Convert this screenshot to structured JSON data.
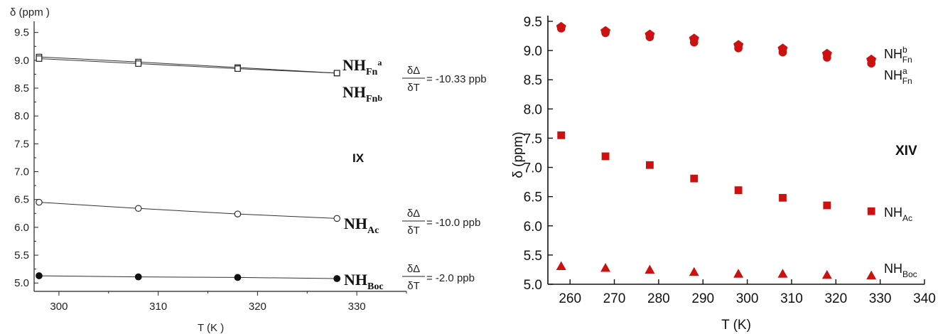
{
  "chart_data": [
    {
      "id": "left",
      "type": "line",
      "title": "",
      "panel_label": "IX",
      "ylabel": "δ (ppm )",
      "xlabel": "T    (K )",
      "xlim": [
        297.5,
        335
      ],
      "ylim": [
        4.85,
        9.7
      ],
      "xticks": [
        300,
        310,
        320,
        330
      ],
      "yticks": [
        5.0,
        5.5,
        6.0,
        6.5,
        7.0,
        7.5,
        8.0,
        8.5,
        9.0,
        9.5
      ],
      "grid": false,
      "series": [
        {
          "name": "NHFna",
          "marker": "square-open",
          "x": [
            298,
            308,
            318,
            328
          ],
          "y": [
            9.06,
            8.97,
            8.87,
            8.77
          ]
        },
        {
          "name": "NHFnb",
          "marker": "square-open",
          "x": [
            298,
            308,
            318,
            328
          ],
          "y": [
            9.03,
            8.94,
            8.85,
            8.77
          ]
        },
        {
          "name": "NHAc",
          "marker": "circle-open",
          "x": [
            298,
            308,
            318,
            328
          ],
          "y": [
            6.45,
            6.34,
            6.24,
            6.16
          ]
        },
        {
          "name": "NHBoc",
          "marker": "circle-filled",
          "x": [
            298,
            308,
            318,
            328
          ],
          "y": [
            5.13,
            5.11,
            5.1,
            5.08
          ]
        }
      ],
      "annotations": [
        {
          "label": "NH",
          "sub": "Fn",
          "sup": "a"
        },
        {
          "label": "NH",
          "sub": "Fn",
          "sup": "b"
        },
        {
          "label": "NH",
          "sub": "Ac"
        },
        {
          "label": "NH",
          "sub": "Boc"
        }
      ],
      "coefficients": [
        {
          "num": "δΔ",
          "den": "δT",
          "value": "= -10.33 ppb"
        },
        {
          "num": "δΔ",
          "den": "δT",
          "value": "= -10.0 ppb"
        },
        {
          "num": "δΔ",
          "den": "δT",
          "value": "= -2.0 ppb"
        }
      ]
    },
    {
      "id": "right",
      "type": "scatter",
      "title": "",
      "panel_label": "XIV",
      "ylabel": "δ (ppm)",
      "xlabel": "T (K)",
      "xlim": [
        255,
        340
      ],
      "ylim": [
        5.0,
        9.5
      ],
      "xticks": [
        260,
        270,
        280,
        290,
        300,
        310,
        320,
        330,
        340
      ],
      "yticks": [
        5.0,
        5.5,
        6.0,
        6.5,
        7.0,
        7.5,
        8.0,
        8.5,
        9.0,
        9.5
      ],
      "grid": false,
      "color": "#cc1111",
      "series": [
        {
          "name": "NHbFn",
          "marker": "pentagon",
          "x": [
            258,
            268,
            278,
            288,
            298,
            308,
            318,
            328
          ],
          "y": [
            9.4,
            9.33,
            9.27,
            9.2,
            9.09,
            9.03,
            8.94,
            8.84
          ]
        },
        {
          "name": "NHaFn",
          "marker": "circle",
          "x": [
            258,
            268,
            278,
            288,
            298,
            308,
            318,
            328
          ],
          "y": [
            9.38,
            9.3,
            9.23,
            9.14,
            9.04,
            8.97,
            8.88,
            8.78
          ]
        },
        {
          "name": "NHAc",
          "marker": "square",
          "x": [
            258,
            268,
            278,
            288,
            298,
            308,
            318,
            328
          ],
          "y": [
            7.55,
            7.19,
            7.04,
            6.81,
            6.61,
            6.48,
            6.35,
            6.25
          ]
        },
        {
          "name": "NHBoc",
          "marker": "triangle",
          "x": [
            258,
            268,
            278,
            288,
            298,
            308,
            318,
            328
          ],
          "y": [
            5.31,
            5.28,
            5.25,
            5.21,
            5.18,
            5.18,
            5.16,
            5.15
          ]
        }
      ],
      "annotations": [
        {
          "label": "NH",
          "sup": "b",
          "sub": "Fn"
        },
        {
          "label": "NH",
          "sup": "a",
          "sub": "Fn"
        },
        {
          "label": "NH",
          "sub": "Ac"
        },
        {
          "label": "NH",
          "sub": "Boc"
        }
      ]
    }
  ]
}
